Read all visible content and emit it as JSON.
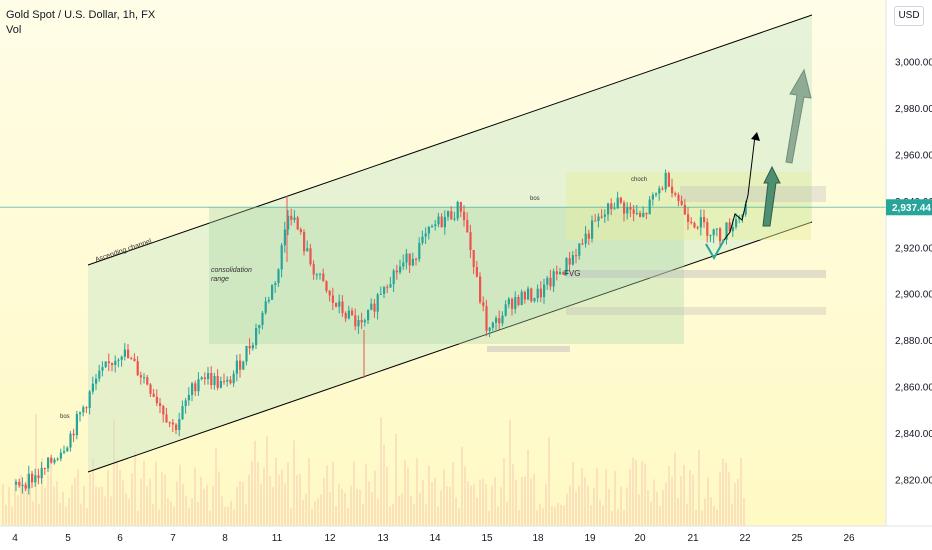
{
  "header": {
    "title": "Gold Spot / U.S. Dollar, 1h, FX",
    "indicator": "Vol"
  },
  "price_axis": {
    "currency": "USD",
    "labels": [
      "3,000.00",
      "2,980.00",
      "2,960.00",
      "2,940.00",
      "2,920.00",
      "2,900.00",
      "2,880.00",
      "2,860.00",
      "2,840.00",
      "2,820.00"
    ],
    "current_price": "2,937.44"
  },
  "time_axis": {
    "labels": [
      "4",
      "5",
      "6",
      "7",
      "8",
      "11",
      "12",
      "13",
      "14",
      "15",
      "18",
      "19",
      "20",
      "21",
      "22",
      "25",
      "26"
    ]
  },
  "annotations": {
    "channel_label": "Ascending channel",
    "consolidation_label": "consolidation range",
    "bos_left": "bos",
    "bos_mid": "bos",
    "choch": "choch",
    "fvg": "FVG"
  },
  "colors": {
    "bull": "#26a69a",
    "bear": "#ef5350",
    "channel_fill": "#c8e6c9",
    "zone_fill": "#a5d6a7",
    "price_badge": "#26a69a",
    "background_top": "#fffde7"
  },
  "chart_data": {
    "type": "candlestick",
    "title": "Gold Spot / U.S. Dollar, 1h, FX",
    "x_ticks": [
      "4",
      "5",
      "6",
      "7",
      "8",
      "11",
      "12",
      "13",
      "14",
      "15",
      "18",
      "19",
      "20",
      "21",
      "22",
      "25",
      "26"
    ],
    "y_ticks": [
      3000,
      2980,
      2960,
      2940,
      2920,
      2900,
      2880,
      2860,
      2840,
      2820
    ],
    "ylim": [
      2800,
      3020
    ],
    "close_path": [
      {
        "x": "4",
        "y": 2818
      },
      {
        "x": "4.5",
        "y": 2823
      },
      {
        "x": "5",
        "y": 2838
      },
      {
        "x": "5.5",
        "y": 2862
      },
      {
        "x": "6",
        "y": 2876
      },
      {
        "x": "6.5",
        "y": 2862
      },
      {
        "x": "7",
        "y": 2842
      },
      {
        "x": "7.5",
        "y": 2866
      },
      {
        "x": "8",
        "y": 2860
      },
      {
        "x": "8.5",
        "y": 2880
      },
      {
        "x": "11",
        "y": 2910
      },
      {
        "x": "11.2",
        "y": 2938
      },
      {
        "x": "11.6",
        "y": 2914
      },
      {
        "x": "12",
        "y": 2897
      },
      {
        "x": "12.6",
        "y": 2885
      },
      {
        "x": "13",
        "y": 2905
      },
      {
        "x": "13.6",
        "y": 2918
      },
      {
        "x": "14",
        "y": 2930
      },
      {
        "x": "14.5",
        "y": 2938
      },
      {
        "x": "14.8",
        "y": 2903
      },
      {
        "x": "15",
        "y": 2883
      },
      {
        "x": "15.5",
        "y": 2898
      },
      {
        "x": "18",
        "y": 2900
      },
      {
        "x": "18.5",
        "y": 2912
      },
      {
        "x": "19",
        "y": 2928
      },
      {
        "x": "19.5",
        "y": 2940
      },
      {
        "x": "20",
        "y": 2932
      },
      {
        "x": "20.5",
        "y": 2951
      },
      {
        "x": "20.8",
        "y": 2936
      },
      {
        "x": "21",
        "y": 2932
      },
      {
        "x": "21.5",
        "y": 2925
      },
      {
        "x": "22",
        "y": 2937.44
      }
    ],
    "current_price": 2937.44,
    "zones": {
      "consolidation_range": [
        2880,
        2938
      ],
      "fvg": [
        2907,
        2912
      ],
      "bos_level": 2938,
      "choch_level": 2951
    }
  }
}
